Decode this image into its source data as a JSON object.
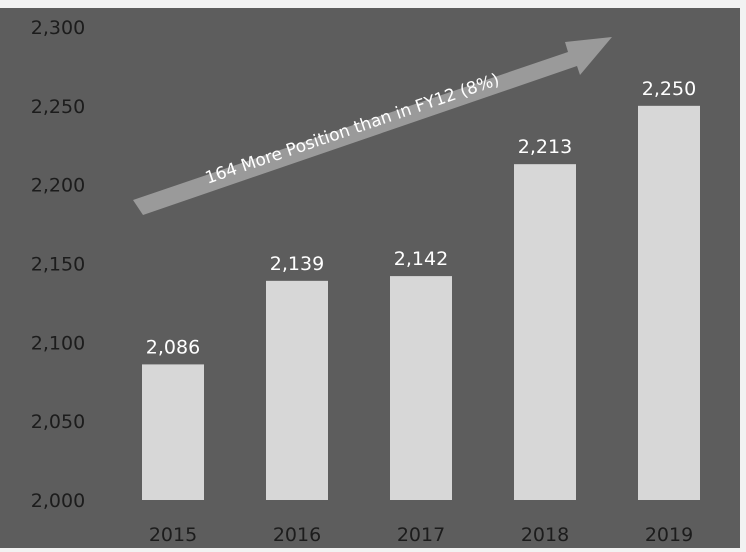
{
  "chart_data": {
    "type": "bar",
    "categories": [
      "2015",
      "2016",
      "2017",
      "2018",
      "2019"
    ],
    "values": [
      2086,
      2139,
      2142,
      2213,
      2250
    ],
    "value_labels": [
      "2,086",
      "2,139",
      "2,142",
      "2,213",
      "2,250"
    ],
    "ylim": [
      2000,
      2300
    ],
    "yticks": [
      2000,
      2050,
      2100,
      2150,
      2200,
      2250,
      2300
    ],
    "ytick_labels": [
      "2,000",
      "2,050",
      "2,100",
      "2,150",
      "2,200",
      "2,250",
      "2,300"
    ],
    "grid": false,
    "annotation": "164 More Position than in FY12 (8%)",
    "colors": {
      "background": "#5d5d5d",
      "bar": "#d7d7d7",
      "text": "#ffffff",
      "axis_text": "#1c1c1c",
      "arrow": "#9a9a9a"
    }
  }
}
